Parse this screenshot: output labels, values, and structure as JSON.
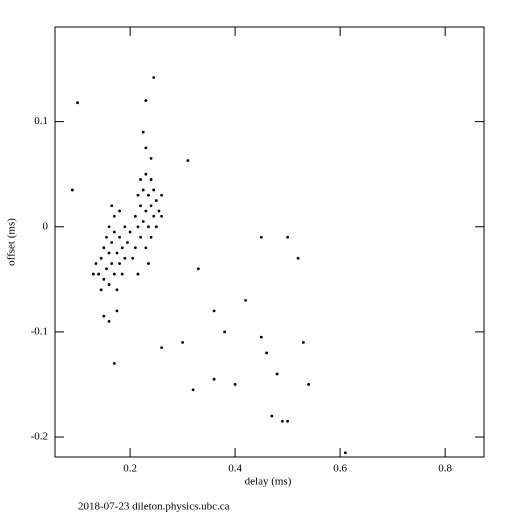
{
  "chart_data": {
    "type": "scatter",
    "xlabel": "delay (ms)",
    "ylabel": "offset (ms)",
    "footer": "2018-07-23 dileton.physics.ubc.ca",
    "color": "#000000",
    "xlim": [
      0.057,
      0.874
    ],
    "ylim": [
      -0.219,
      0.19
    ],
    "xticks": [
      0.2,
      0.4,
      0.6,
      0.8
    ],
    "yticks": [
      -0.2,
      -0.1,
      0,
      0.1
    ],
    "x": [
      0.14,
      0.145,
      0.15,
      0.15,
      0.155,
      0.155,
      0.16,
      0.16,
      0.16,
      0.165,
      0.165,
      0.17,
      0.17,
      0.17,
      0.175,
      0.175,
      0.18,
      0.18,
      0.18,
      0.185,
      0.185,
      0.19,
      0.19,
      0.195,
      0.135,
      0.13,
      0.145,
      0.165,
      0.2,
      0.175,
      0.16,
      0.15,
      0.21,
      0.21,
      0.215,
      0.215,
      0.22,
      0.22,
      0.22,
      0.225,
      0.225,
      0.23,
      0.23,
      0.23,
      0.235,
      0.235,
      0.24,
      0.24,
      0.24,
      0.245,
      0.245,
      0.25,
      0.25,
      0.255,
      0.26,
      0.205,
      0.215,
      0.23,
      0.24,
      0.26,
      0.235,
      0.225,
      0.1,
      0.09,
      0.245,
      0.23,
      0.31,
      0.33,
      0.36,
      0.38,
      0.42,
      0.45,
      0.5,
      0.52,
      0.46,
      0.45,
      0.48,
      0.53,
      0.54,
      0.47,
      0.49,
      0.5,
      0.4,
      0.36,
      0.32,
      0.3,
      0.26,
      0.17,
      0.61
    ],
    "values": [
      -0.045,
      -0.03,
      -0.02,
      -0.05,
      -0.01,
      -0.04,
      -0.025,
      -0.055,
      0.0,
      -0.015,
      -0.035,
      -0.005,
      -0.045,
      0.01,
      -0.025,
      -0.06,
      -0.01,
      -0.035,
      0.015,
      -0.02,
      -0.045,
      0.0,
      -0.03,
      -0.015,
      -0.035,
      -0.045,
      -0.06,
      0.02,
      -0.005,
      -0.08,
      -0.09,
      -0.085,
      -0.02,
      0.01,
      0.0,
      0.03,
      -0.01,
      0.02,
      0.045,
      0.005,
      0.035,
      -0.02,
      0.015,
      0.05,
      0.0,
      0.03,
      -0.01,
      0.02,
      0.045,
      0.01,
      0.035,
      0.0,
      0.025,
      0.015,
      0.01,
      -0.03,
      -0.045,
      0.075,
      0.065,
      0.03,
      -0.035,
      0.09,
      0.118,
      0.035,
      0.142,
      0.12,
      0.063,
      -0.04,
      -0.08,
      -0.1,
      -0.07,
      -0.01,
      -0.01,
      -0.03,
      -0.12,
      -0.105,
      -0.14,
      -0.11,
      -0.15,
      -0.18,
      -0.185,
      -0.185,
      -0.15,
      -0.145,
      -0.155,
      -0.11,
      -0.115,
      -0.13,
      -0.215
    ]
  }
}
